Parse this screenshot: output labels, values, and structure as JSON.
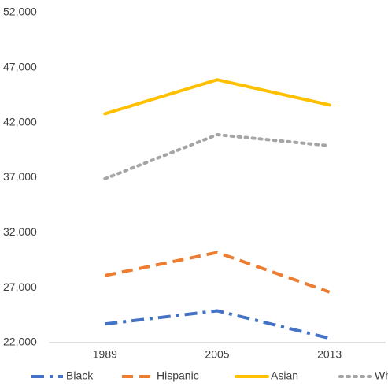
{
  "chart_data": {
    "type": "line",
    "categories": [
      "1989",
      "2005",
      "2013"
    ],
    "series": [
      {
        "name": "Black",
        "color": "#4472c4",
        "dash": "dashdot",
        "values": [
          23700,
          24900,
          22400
        ]
      },
      {
        "name": "Hispanic",
        "color": "#ed7d31",
        "dash": "dash",
        "values": [
          28100,
          30200,
          26600
        ]
      },
      {
        "name": "Asian",
        "color": "#ffc000",
        "dash": "solid",
        "values": [
          42800,
          45900,
          43600
        ]
      },
      {
        "name": "White",
        "color": "#a5a5a5",
        "dash": "dot",
        "values": [
          36900,
          40900,
          39900
        ]
      }
    ],
    "ylim": [
      22000,
      52000
    ],
    "yticks": [
      {
        "value": 22000,
        "label": "22,000"
      },
      {
        "value": 27000,
        "label": "27,000"
      },
      {
        "value": 32000,
        "label": "32,000"
      },
      {
        "value": 37000,
        "label": "37,000"
      },
      {
        "value": 42000,
        "label": "42,000"
      },
      {
        "value": 47000,
        "label": "47,000"
      },
      {
        "value": 52000,
        "label": "52,000"
      }
    ],
    "grid": false,
    "legend": "bottom"
  }
}
